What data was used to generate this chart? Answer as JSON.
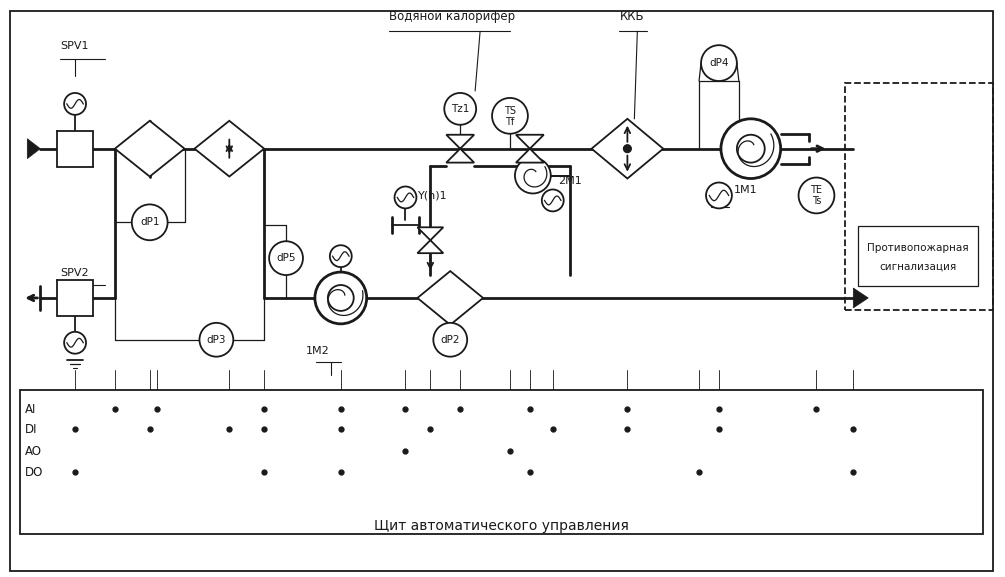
{
  "bg_color": "#ffffff",
  "line_color": "#1a1a1a",
  "title": "Щит автоматического управления",
  "label_vodyanoy": "Водяной калорифер",
  "label_kkb": "ККБ",
  "label_spv1": "SPV1",
  "label_spv2": "SPV2",
  "label_dp1": "dP1",
  "label_dp2": "dP2",
  "label_dp3": "dP3",
  "label_dp4": "dP4",
  "label_dp5": "dP5",
  "label_tz1": "Tz1",
  "label_2m1": "2M1",
  "label_1m1": "1M1",
  "label_1m2": "1M2",
  "label_yh1": "Y(h)1",
  "label_ai": "AI",
  "label_di": "DI",
  "label_ao": "AO",
  "label_do": "DO",
  "label_fire": "Противопожарная\nсигнализация"
}
